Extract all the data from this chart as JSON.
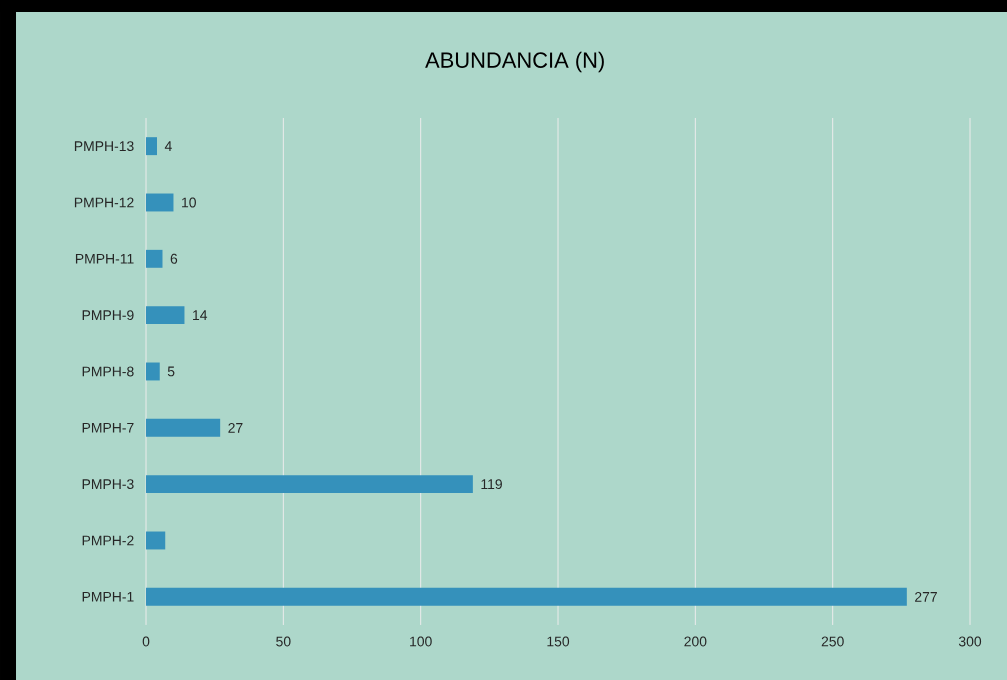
{
  "chart_data": {
    "type": "bar",
    "orientation": "horizontal",
    "title": "ABUNDANCIA (N)",
    "categories": [
      "PMPH-13",
      "PMPH-12",
      "PMPH-11",
      "PMPH-9",
      "PMPH-8",
      "PMPH-7",
      "PMPH-3",
      "PMPH-2",
      "PMPH-1"
    ],
    "values": [
      4,
      10,
      6,
      14,
      5,
      27,
      119,
      7,
      277
    ],
    "value_labels": [
      "4",
      "10",
      "6",
      "14",
      "5",
      "27",
      "119",
      null,
      "277"
    ],
    "color": "#3591bb",
    "xlim": [
      0,
      300
    ],
    "xticks": [
      0,
      50,
      100,
      150,
      200,
      250,
      300
    ],
    "grid": "x"
  }
}
